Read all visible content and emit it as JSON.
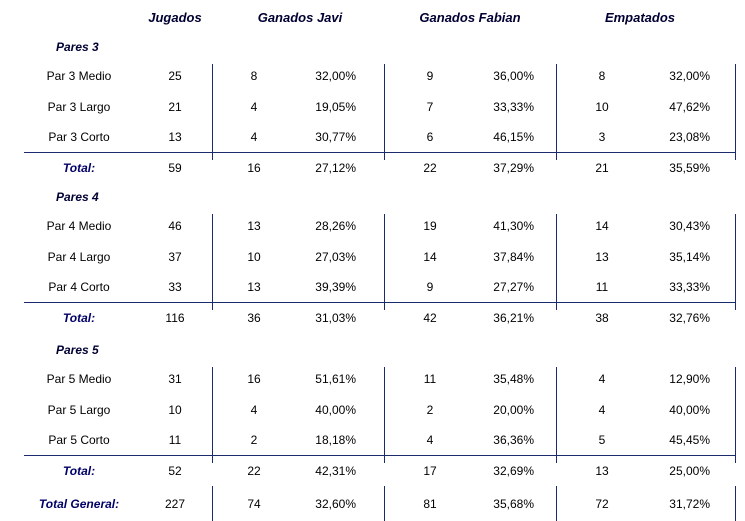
{
  "columns": {
    "jugados": "Jugados",
    "javi": "Ganados Javi",
    "fabian": "Ganados Fabian",
    "empatados": "Empatados"
  },
  "sections": [
    {
      "title": "Pares 3",
      "rows": [
        {
          "label": "Par 3 Medio",
          "jugados": "25",
          "javi_n": "8",
          "javi_p": "32,00%",
          "fabian_n": "9",
          "fabian_p": "36,00%",
          "emp_n": "8",
          "emp_p": "32,00%"
        },
        {
          "label": "Par 3 Largo",
          "jugados": "21",
          "javi_n": "4",
          "javi_p": "19,05%",
          "fabian_n": "7",
          "fabian_p": "33,33%",
          "emp_n": "10",
          "emp_p": "47,62%"
        },
        {
          "label": "Par 3 Corto",
          "jugados": "13",
          "javi_n": "4",
          "javi_p": "30,77%",
          "fabian_n": "6",
          "fabian_p": "46,15%",
          "emp_n": "3",
          "emp_p": "23,08%"
        }
      ],
      "total": {
        "label": "Total:",
        "jugados": "59",
        "javi_n": "16",
        "javi_p": "27,12%",
        "fabian_n": "22",
        "fabian_p": "37,29%",
        "emp_n": "21",
        "emp_p": "35,59%"
      }
    },
    {
      "title": "Pares 4",
      "rows": [
        {
          "label": "Par 4 Medio",
          "jugados": "46",
          "javi_n": "13",
          "javi_p": "28,26%",
          "fabian_n": "19",
          "fabian_p": "41,30%",
          "emp_n": "14",
          "emp_p": "30,43%"
        },
        {
          "label": "Par 4 Largo",
          "jugados": "37",
          "javi_n": "10",
          "javi_p": "27,03%",
          "fabian_n": "14",
          "fabian_p": "37,84%",
          "emp_n": "13",
          "emp_p": "35,14%"
        },
        {
          "label": "Par 4 Corto",
          "jugados": "33",
          "javi_n": "13",
          "javi_p": "39,39%",
          "fabian_n": "9",
          "fabian_p": "27,27%",
          "emp_n": "11",
          "emp_p": "33,33%"
        }
      ],
      "total": {
        "label": "Total:",
        "jugados": "116",
        "javi_n": "36",
        "javi_p": "31,03%",
        "fabian_n": "42",
        "fabian_p": "36,21%",
        "emp_n": "38",
        "emp_p": "32,76%"
      }
    },
    {
      "title": "Pares 5",
      "rows": [
        {
          "label": "Par 5 Medio",
          "jugados": "31",
          "javi_n": "16",
          "javi_p": "51,61%",
          "fabian_n": "11",
          "fabian_p": "35,48%",
          "emp_n": "4",
          "emp_p": "12,90%"
        },
        {
          "label": "Par 5 Largo",
          "jugados": "10",
          "javi_n": "4",
          "javi_p": "40,00%",
          "fabian_n": "2",
          "fabian_p": "20,00%",
          "emp_n": "4",
          "emp_p": "40,00%"
        },
        {
          "label": "Par 5 Corto",
          "jugados": "11",
          "javi_n": "2",
          "javi_p": "18,18%",
          "fabian_n": "4",
          "fabian_p": "36,36%",
          "emp_n": "5",
          "emp_p": "45,45%"
        }
      ],
      "total": {
        "label": "Total:",
        "jugados": "52",
        "javi_n": "22",
        "javi_p": "42,31%",
        "fabian_n": "17",
        "fabian_p": "32,69%",
        "emp_n": "13",
        "emp_p": "25,00%"
      }
    }
  ],
  "grand_total": {
    "label": "Total General:",
    "jugados": "227",
    "javi_n": "74",
    "javi_p": "32,60%",
    "fabian_n": "81",
    "fabian_p": "35,68%",
    "emp_n": "72",
    "emp_p": "31,72%"
  }
}
